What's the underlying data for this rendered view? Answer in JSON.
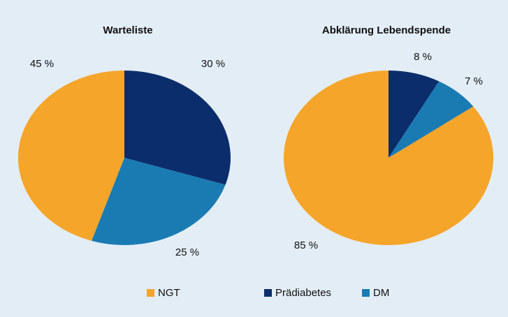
{
  "chart_data": [
    {
      "type": "pie",
      "title": "Warteliste",
      "categories": [
        "NGT",
        "Prädiabetes",
        "DM"
      ],
      "values": [
        45,
        30,
        25
      ],
      "value_labels": [
        "45 %",
        "30 %",
        "25 %"
      ],
      "colors": [
        "#f5a52a",
        "#0b2d6b",
        "#1a7bb3"
      ]
    },
    {
      "type": "pie",
      "title": "Abklärung Lebendspende",
      "categories": [
        "NGT",
        "Prädiabetes",
        "DM"
      ],
      "values": [
        85,
        8,
        7
      ],
      "value_labels": [
        "85 %",
        "8 %",
        "7 %"
      ],
      "colors": [
        "#f5a52a",
        "#0b2d6b",
        "#1a7bb3"
      ]
    }
  ]
}
